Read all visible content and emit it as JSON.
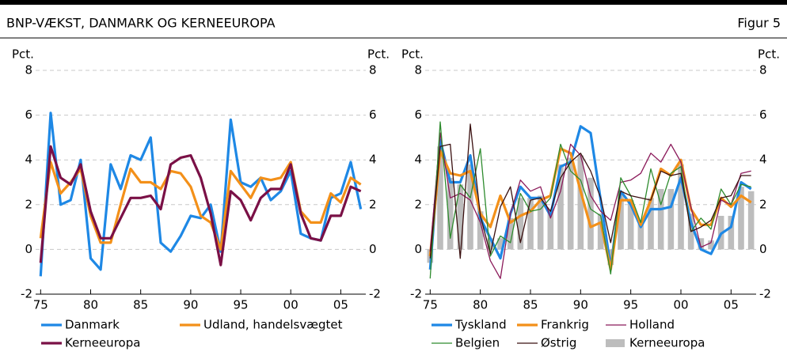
{
  "header": {
    "title": "BNP-VÆKST, DANMARK OG KERNEEUROPA",
    "figure": "Figur 5"
  },
  "chart_data": [
    {
      "type": "line",
      "y_label": "Pct.",
      "y2_label": "Pct.",
      "x": [
        1975,
        1976,
        1977,
        1978,
        1979,
        1980,
        1981,
        1982,
        1983,
        1984,
        1985,
        1986,
        1987,
        1988,
        1989,
        1990,
        1991,
        1992,
        1993,
        1994,
        1995,
        1996,
        1997,
        1998,
        1999,
        2000,
        2001,
        2002,
        2003,
        2004,
        2005,
        2006,
        2007
      ],
      "xlim": [
        1974.5,
        2007.5
      ],
      "xticks": [
        {
          "value": 1975,
          "label": "75"
        },
        {
          "value": 1980,
          "label": "80"
        },
        {
          "value": 1985,
          "label": "85"
        },
        {
          "value": 1990,
          "label": "90"
        },
        {
          "value": 1995,
          "label": "95"
        },
        {
          "value": 2000,
          "label": "00"
        },
        {
          "value": 2005,
          "label": "05"
        }
      ],
      "ylim": [
        -2,
        8
      ],
      "yticks": [
        -2,
        0,
        2,
        4,
        6,
        8
      ],
      "y2lim": [
        -2,
        8
      ],
      "y2ticks": [
        -2,
        0,
        2,
        4,
        6,
        8
      ],
      "grid": true,
      "series": [
        {
          "name": "Danmark",
          "color": "#1e88e5",
          "values": [
            -1.2,
            6.1,
            2.0,
            2.2,
            4.0,
            -0.4,
            -0.9,
            3.8,
            2.7,
            4.2,
            4.0,
            5.0,
            0.3,
            -0.1,
            0.6,
            1.5,
            1.4,
            2.0,
            -0.1,
            5.8,
            3.0,
            2.8,
            3.2,
            2.2,
            2.6,
            3.5,
            0.7,
            0.5,
            0.4,
            2.3,
            2.5,
            3.9,
            1.8
          ]
        },
        {
          "name": "Udland, handelsvægtet",
          "color": "#f39019",
          "values": [
            0.5,
            3.9,
            2.5,
            3.0,
            3.6,
            1.5,
            0.3,
            0.3,
            2.0,
            3.6,
            3.0,
            3.0,
            2.7,
            3.5,
            3.4,
            2.8,
            1.5,
            1.2,
            0.0,
            3.5,
            2.9,
            2.3,
            3.2,
            3.1,
            3.2,
            3.9,
            1.7,
            1.2,
            1.2,
            2.5,
            2.1,
            3.2,
            2.9
          ]
        },
        {
          "name": "Kerneeuropa",
          "color": "#7a1046",
          "values": [
            -0.6,
            4.6,
            3.2,
            2.9,
            3.8,
            1.7,
            0.5,
            0.5,
            1.4,
            2.3,
            2.3,
            2.4,
            1.8,
            3.8,
            4.1,
            4.2,
            3.2,
            1.6,
            -0.7,
            2.6,
            2.2,
            1.3,
            2.3,
            2.7,
            2.7,
            3.8,
            1.6,
            0.5,
            0.4,
            1.5,
            1.5,
            2.8,
            2.6
          ]
        }
      ]
    },
    {
      "type": "line",
      "y_label": "Pct.",
      "y2_label": "Pct.",
      "x": [
        1975,
        1976,
        1977,
        1978,
        1979,
        1980,
        1981,
        1982,
        1983,
        1984,
        1985,
        1986,
        1987,
        1988,
        1989,
        1990,
        1991,
        1992,
        1993,
        1994,
        1995,
        1996,
        1997,
        1998,
        1999,
        2000,
        2001,
        2002,
        2003,
        2004,
        2005,
        2006,
        2007
      ],
      "xlim": [
        1974.5,
        2007.5
      ],
      "xticks": [
        {
          "value": 1975,
          "label": "75"
        },
        {
          "value": 1980,
          "label": "80"
        },
        {
          "value": 1985,
          "label": "85"
        },
        {
          "value": 1990,
          "label": "90"
        },
        {
          "value": 1995,
          "label": "95"
        },
        {
          "value": 2000,
          "label": "00"
        },
        {
          "value": 2005,
          "label": "05"
        }
      ],
      "ylim": [
        -2,
        8
      ],
      "yticks": [
        -2,
        0,
        2,
        4,
        6,
        8
      ],
      "y2lim": [
        -2,
        8
      ],
      "y2ticks": [
        -2,
        0,
        2,
        4,
        6,
        8
      ],
      "grid": true,
      "series": [
        {
          "name": "Kerneeuropa",
          "type": "bar",
          "color": "#bdbdbd",
          "values": [
            -0.6,
            4.6,
            3.2,
            2.9,
            3.8,
            1.7,
            0.5,
            0.5,
            1.4,
            2.3,
            2.3,
            2.4,
            1.8,
            3.8,
            4.1,
            4.2,
            3.2,
            1.6,
            -0.7,
            2.6,
            2.2,
            1.3,
            2.3,
            2.7,
            2.7,
            3.8,
            1.6,
            0.5,
            0.4,
            1.5,
            1.5,
            2.8,
            2.6
          ]
        },
        {
          "name": "Tyskland",
          "color": "#1e88e5",
          "values": [
            -0.9,
            4.9,
            3.0,
            3.0,
            4.2,
            1.4,
            0.5,
            -0.4,
            1.6,
            2.8,
            2.3,
            2.3,
            1.5,
            3.7,
            3.9,
            5.5,
            5.2,
            2.2,
            -0.8,
            2.6,
            2.0,
            1.0,
            1.8,
            1.8,
            1.9,
            3.2,
            1.2,
            0.0,
            -0.2,
            0.7,
            1.0,
            3.0,
            2.7
          ]
        },
        {
          "name": "Frankrig",
          "color": "#f39019",
          "values": [
            -0.3,
            4.4,
            3.4,
            3.3,
            3.5,
            1.6,
            1.0,
            2.4,
            1.2,
            1.5,
            1.7,
            2.2,
            2.4,
            4.5,
            4.3,
            2.6,
            1.0,
            1.2,
            -0.9,
            2.2,
            2.2,
            1.1,
            2.2,
            3.6,
            3.3,
            4.0,
            1.8,
            1.1,
            1.1,
            2.3,
            1.9,
            2.4,
            2.1
          ]
        },
        {
          "name": "Holland",
          "color": "#8b1a5a",
          "values": [
            -0.1,
            5.2,
            2.3,
            2.5,
            2.2,
            1.2,
            -0.5,
            -1.3,
            1.6,
            3.1,
            2.6,
            2.8,
            1.4,
            2.6,
            4.7,
            4.2,
            2.4,
            1.7,
            1.3,
            3.0,
            3.1,
            3.4,
            4.3,
            3.9,
            4.7,
            3.9,
            1.9,
            0.1,
            0.3,
            2.2,
            2.0,
            3.4,
            3.5
          ]
        },
        {
          "name": "Belgien",
          "color": "#2e8b2e",
          "values": [
            -1.3,
            5.7,
            0.5,
            2.9,
            2.3,
            4.5,
            -0.3,
            0.6,
            0.3,
            2.5,
            1.7,
            1.8,
            2.3,
            4.7,
            3.5,
            3.1,
            1.8,
            1.5,
            -1.1,
            3.2,
            2.4,
            1.2,
            3.6,
            2.0,
            3.4,
            3.7,
            0.8,
            1.4,
            0.9,
            2.7,
            2.0,
            2.9,
            2.8
          ]
        },
        {
          "name": "Østrig",
          "color": "#3a1010",
          "values": [
            -0.4,
            4.6,
            4.7,
            -0.4,
            5.6,
            1.5,
            -0.2,
            1.9,
            2.8,
            0.3,
            2.2,
            2.3,
            1.7,
            3.2,
            3.9,
            4.3,
            3.5,
            2.3,
            0.3,
            2.6,
            2.4,
            2.3,
            2.2,
            3.5,
            3.3,
            3.4,
            0.8,
            1.0,
            1.3,
            2.3,
            2.4,
            3.3,
            3.3
          ]
        }
      ]
    }
  ]
}
